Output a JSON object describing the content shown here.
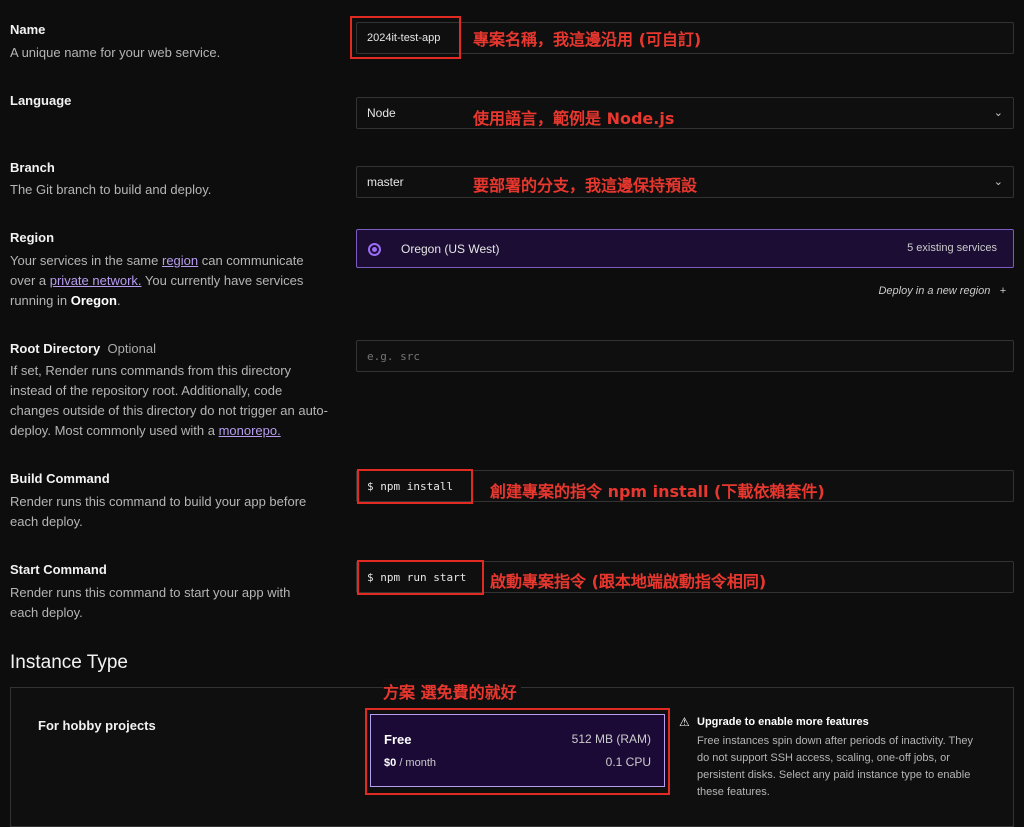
{
  "name": {
    "label": "Name",
    "desc": "A unique name for your web service.",
    "value": "2024it-test-app",
    "note": "專案名稱，我這邊沿用 (可自訂)"
  },
  "language": {
    "label": "Language",
    "value": "Node",
    "note": "使用語言，範例是 Node.js"
  },
  "branch": {
    "label": "Branch",
    "desc": "The Git branch to build and deploy.",
    "value": "master",
    "note": "要部署的分支，我這邊保持預設"
  },
  "region": {
    "label": "Region",
    "desc_1": "Your services in the same ",
    "link_1": "region",
    "desc_2": " can communicate over a ",
    "link_2": "private network.",
    "desc_3": " You currently have services running in ",
    "bold": "Oregon",
    "desc_4": ".",
    "selected": "Oregon (US West)",
    "count": "5 existing services",
    "deploy_new": "Deploy in a new region",
    "plus": "+"
  },
  "root": {
    "label": "Root Directory",
    "optional": "Optional",
    "desc": "If set, Render runs commands from this directory instead of the repository root. Additionally, code changes outside of this directory do not trigger an auto-deploy. Most commonly used with a ",
    "link": "monorepo.",
    "placeholder": "e.g. src"
  },
  "build": {
    "label": "Build Command",
    "desc": "Render runs this command to build your app before each deploy.",
    "value": "$ npm install",
    "note": "創建專案的指令 npm install (下載依賴套件)"
  },
  "start": {
    "label": "Start Command",
    "desc": "Render runs this command to start your app with each deploy.",
    "value": "$ npm run start",
    "note": "啟動專案指令 (跟本地端啟動指令相同)"
  },
  "instance": {
    "heading": "Instance Type",
    "note": "方案 選免費的就好",
    "group": "For hobby projects",
    "plan": "Free",
    "ram": "512 MB (RAM)",
    "price": "$0",
    "period": "/ month",
    "cpu": "0.1 CPU",
    "warn_title": "Upgrade to enable more features",
    "warn_desc": "Free instances spin down after periods of inactivity. They do not support SSH access, scaling, one-off jobs, or persistent disks. Select any paid instance type to enable these features."
  },
  "colors": {
    "accent": "#7c5cbf",
    "annotation": "#e8372e"
  }
}
